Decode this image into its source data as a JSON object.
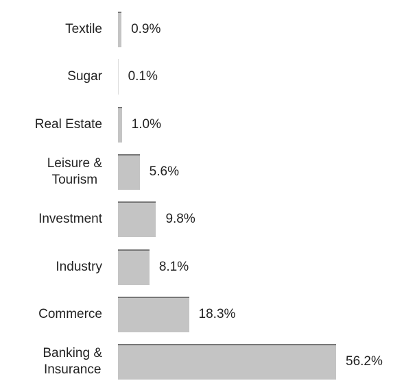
{
  "chart_data": {
    "type": "bar",
    "orientation": "horizontal",
    "categories": [
      "Textile",
      "Sugar",
      "Real Estate",
      "Leisure &\nTourism",
      "Investment",
      "Industry",
      "Commerce",
      "Banking &\nInsurance"
    ],
    "values": [
      0.9,
      0.1,
      1.0,
      5.6,
      9.8,
      8.1,
      18.3,
      56.2
    ],
    "value_labels": [
      "0.9%",
      "0.1%",
      "1.0%",
      "5.6%",
      "9.8%",
      "8.1%",
      "18.3%",
      "56.2%"
    ],
    "color": "#c4c4c4"
  }
}
